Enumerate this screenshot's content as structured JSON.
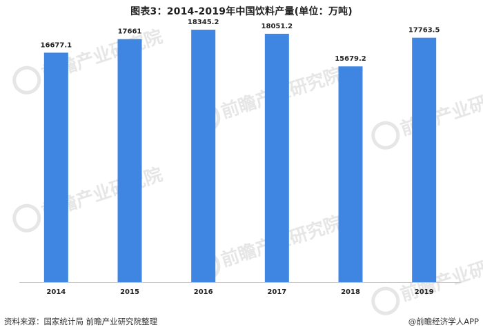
{
  "title": "图表3：2014-2019年中国饮料产量(单位：万吨)",
  "footer": {
    "source": "资料来源：国家统计局 前瞻产业研究院整理",
    "brand": "@前瞻经济学人APP"
  },
  "watermark": {
    "text": "前瞻产业研究院"
  },
  "colors": {
    "bar": "#3f86e3",
    "axis": "#c8c8c8",
    "watermark": "#e6e6e6"
  },
  "chart_data": {
    "type": "bar",
    "title": "图表3：2014-2019年中国饮料产量(单位：万吨)",
    "xlabel": "",
    "ylabel": "",
    "ylim": [
      0,
      19000
    ],
    "grid": false,
    "legend": "none",
    "categories": [
      "2014",
      "2015",
      "2016",
      "2017",
      "2018",
      "2019"
    ],
    "values": [
      16677.1,
      17661,
      18345.2,
      18051.2,
      15679.2,
      17763.5
    ],
    "value_labels": [
      "16677.1",
      "17661",
      "18345.2",
      "18051.2",
      "15679.2",
      "17763.5"
    ]
  }
}
